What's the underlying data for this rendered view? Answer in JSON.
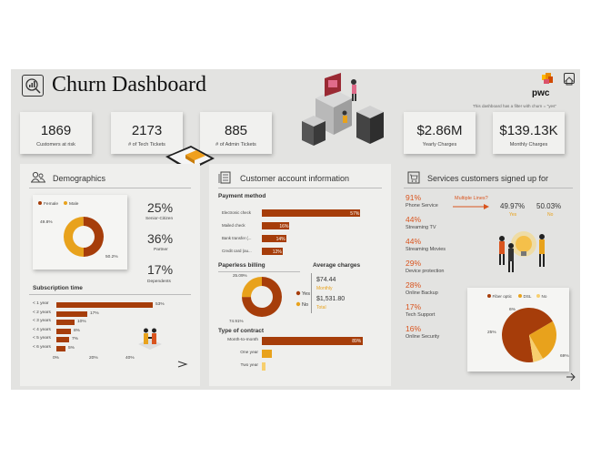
{
  "header": {
    "title": "Churn Dashboard",
    "filter_note": "This dashboard has a filter with churn = \"yes\"",
    "logo_text": "pwc"
  },
  "kpis": [
    {
      "value": "1869",
      "label": "Customers at risk"
    },
    {
      "value": "2173",
      "label": "# of Tech Tickets"
    },
    {
      "value": "885",
      "label": "# of Admin Tickets"
    },
    {
      "value": "$2.86M",
      "label": "Yearly Charges"
    },
    {
      "value": "$139.13K",
      "label": "Monthly Charges"
    }
  ],
  "demographics": {
    "title": "Demographics",
    "stats": [
      {
        "value": "25%",
        "label": "Senior-Citizen"
      },
      {
        "value": "36%",
        "label": "Partner"
      },
      {
        "value": "17%",
        "label": "Dependents"
      }
    ],
    "subscription_title": "Subscription time"
  },
  "account": {
    "title": "Customer account information",
    "payment_title": "Payment method",
    "paperless_title": "Paperless billing",
    "avg_title": "Average charges",
    "avg_monthly_value": "$74.44",
    "avg_monthly_label": "Monthly",
    "avg_total_value": "$1,531.80",
    "avg_total_label": "Total",
    "contract_title": "Type of contract"
  },
  "services": {
    "title": "Services customers signed up for",
    "items": [
      {
        "pct": "91%",
        "label": "Phone Service"
      },
      {
        "pct": "44%",
        "label": "Streaming TV"
      },
      {
        "pct": "44%",
        "label": "Streaming Movies"
      },
      {
        "pct": "29%",
        "label": "Device protection"
      },
      {
        "pct": "28%",
        "label": "Online Backup"
      },
      {
        "pct": "17%",
        "label": "Tech Support"
      },
      {
        "pct": "16%",
        "label": "Online Security"
      }
    ],
    "multiple_lines_label": "Multiple Lines?",
    "ml_yes_pct": "49.97%",
    "ml_yes_label": "Yes",
    "ml_no_pct": "50.03%",
    "ml_no_label": "No"
  },
  "colors": {
    "dark": "#a63d0a",
    "orange": "#e8a21c",
    "light": "#f7cf6e",
    "accent": "#d9541e",
    "pwc": "#d04a02"
  },
  "chart_data": [
    {
      "id": "gender",
      "type": "pie",
      "donut": true,
      "legend": [
        "Female",
        "Male"
      ],
      "values": [
        49.8,
        50.2
      ],
      "data_labels": [
        "49.8%",
        "50.2%"
      ]
    },
    {
      "id": "subscription",
      "type": "bar",
      "orientation": "horizontal",
      "categories": [
        "< 1 year",
        "< 2 years",
        "< 3 years",
        "< 4 years",
        "< 5 years",
        "< 6 years"
      ],
      "values": [
        53,
        17,
        10,
        8,
        7,
        5
      ],
      "data_labels": [
        "53%",
        "17%",
        "10%",
        "8%",
        "7%",
        "5%"
      ],
      "x_ticks": [
        "0%",
        "20%",
        "40%"
      ],
      "xlim": [
        0,
        60
      ]
    },
    {
      "id": "payment",
      "type": "bar",
      "orientation": "horizontal",
      "categories": [
        "Electronic check",
        "Mailed check",
        "Bank transfer (...",
        "Credit card (au..."
      ],
      "values": [
        57,
        16,
        14,
        12
      ],
      "data_labels": [
        "57%",
        "16%",
        "14%",
        "12%"
      ],
      "xlim": [
        0,
        60
      ]
    },
    {
      "id": "paperless",
      "type": "pie",
      "donut": true,
      "legend": [
        "Yes",
        "No"
      ],
      "values": [
        74.91,
        25.09
      ],
      "data_labels": [
        "74.91%",
        "25.09%"
      ]
    },
    {
      "id": "contract",
      "type": "bar",
      "orientation": "horizontal",
      "categories": [
        "Month-to-month",
        "One year",
        "Two year"
      ],
      "values": [
        89,
        9,
        3
      ],
      "data_labels": [
        "89%",
        "",
        ""
      ],
      "xlim": [
        0,
        92
      ]
    },
    {
      "id": "internet",
      "type": "pie",
      "legend": [
        "Fiber optic",
        "DSL",
        "No"
      ],
      "values": [
        69,
        25,
        6
      ],
      "data_labels": [
        "69%",
        "25%",
        "6%"
      ]
    }
  ]
}
